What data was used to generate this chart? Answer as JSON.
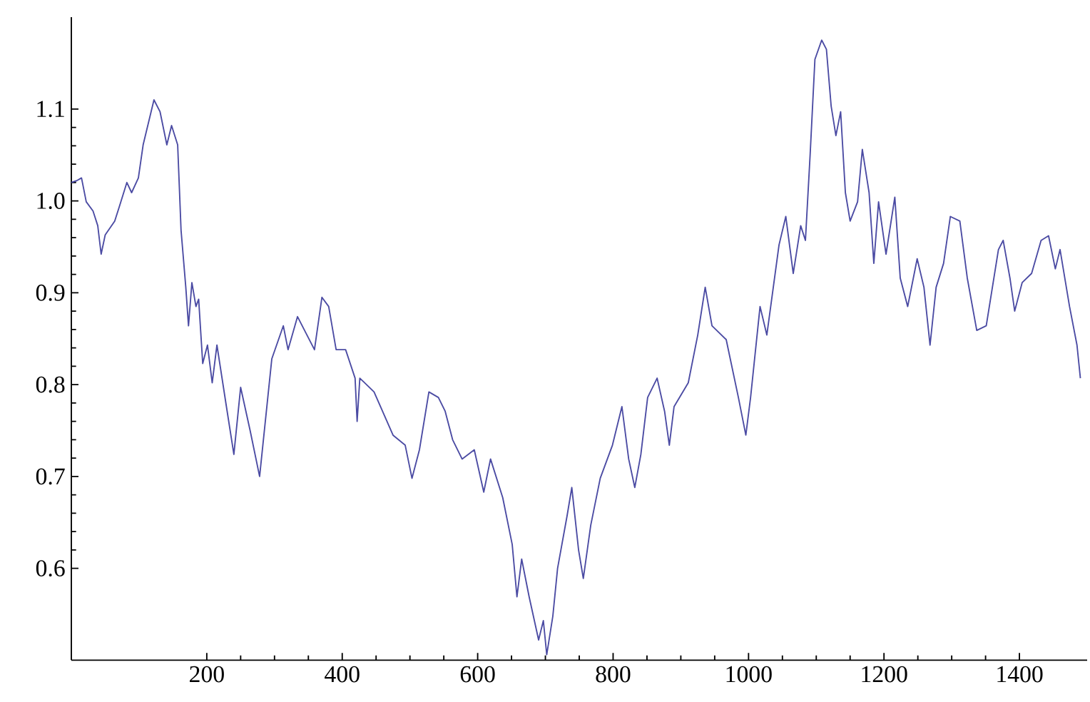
{
  "chart_data": {
    "type": "line",
    "color": "#4b4ba3",
    "xlim": [
      0,
      1500
    ],
    "ylim": [
      0.5,
      1.2
    ],
    "xticks": [
      200,
      400,
      600,
      800,
      1000,
      1200,
      1400
    ],
    "yticks": [
      0.6,
      0.7,
      0.8,
      0.9,
      {
        "value": 1.0,
        "label": "1.0"
      },
      1.1
    ],
    "grid": false,
    "marker": "none",
    "line_style": "solid",
    "x": [
      0,
      8,
      15,
      22,
      32,
      39,
      44,
      50,
      64,
      71,
      82,
      89,
      99,
      106,
      122,
      131,
      141,
      148,
      157,
      162,
      169,
      173,
      178,
      184,
      188,
      194,
      201,
      208,
      215,
      229,
      240,
      250,
      264,
      278,
      296,
      313,
      320,
      334,
      359,
      370,
      380,
      391,
      405,
      419,
      422,
      426,
      447,
      475,
      493,
      503,
      514,
      528,
      542,
      552,
      563,
      577,
      595,
      609,
      619,
      637,
      651,
      658,
      665,
      676,
      690,
      697,
      702,
      711,
      718,
      732,
      739,
      749,
      756,
      767,
      781,
      799,
      813,
      823,
      832,
      841,
      851,
      865,
      876,
      883,
      890,
      911,
      925,
      936,
      946,
      967,
      985,
      996,
      1003,
      1017,
      1027,
      1045,
      1055,
      1066,
      1077,
      1084,
      1091,
      1098,
      1108,
      1115,
      1122,
      1129,
      1136,
      1143,
      1150,
      1161,
      1168,
      1178,
      1185,
      1192,
      1203,
      1216,
      1224,
      1235,
      1249,
      1259,
      1268,
      1277,
      1288,
      1298,
      1312,
      1323,
      1337,
      1351,
      1369,
      1376,
      1386,
      1393,
      1404,
      1418,
      1432,
      1443,
      1453,
      1460,
      1474,
      1485,
      1490
    ],
    "values": [
      1.02,
      1.022,
      1.025,
      0.999,
      0.989,
      0.973,
      0.942,
      0.963,
      0.978,
      0.994,
      1.02,
      1.009,
      1.025,
      1.061,
      1.11,
      1.097,
      1.061,
      1.082,
      1.061,
      0.968,
      0.906,
      0.864,
      0.911,
      0.885,
      0.893,
      0.823,
      0.843,
      0.802,
      0.843,
      0.776,
      0.724,
      0.797,
      0.75,
      0.7,
      0.828,
      0.864,
      0.838,
      0.874,
      0.838,
      0.895,
      0.885,
      0.838,
      0.838,
      0.807,
      0.76,
      0.807,
      0.792,
      0.745,
      0.734,
      0.698,
      0.729,
      0.792,
      0.786,
      0.771,
      0.74,
      0.719,
      0.729,
      0.683,
      0.719,
      0.677,
      0.626,
      0.569,
      0.61,
      0.569,
      0.522,
      0.543,
      0.506,
      0.548,
      0.6,
      0.657,
      0.688,
      0.62,
      0.589,
      0.647,
      0.698,
      0.734,
      0.776,
      0.719,
      0.688,
      0.724,
      0.786,
      0.807,
      0.771,
      0.734,
      0.776,
      0.802,
      0.854,
      0.906,
      0.864,
      0.849,
      0.786,
      0.745,
      0.786,
      0.885,
      0.854,
      0.952,
      0.983,
      0.921,
      0.973,
      0.957,
      1.051,
      1.154,
      1.175,
      1.165,
      1.103,
      1.071,
      1.097,
      1.009,
      0.978,
      0.999,
      1.056,
      1.009,
      0.932,
      0.999,
      0.942,
      1.004,
      0.916,
      0.885,
      0.937,
      0.906,
      0.843,
      0.906,
      0.932,
      0.983,
      0.978,
      0.916,
      0.859,
      0.864,
      0.947,
      0.957,
      0.916,
      0.88,
      0.911,
      0.921,
      0.957,
      0.962,
      0.926,
      0.947,
      0.885,
      0.843,
      0.807
    ]
  }
}
